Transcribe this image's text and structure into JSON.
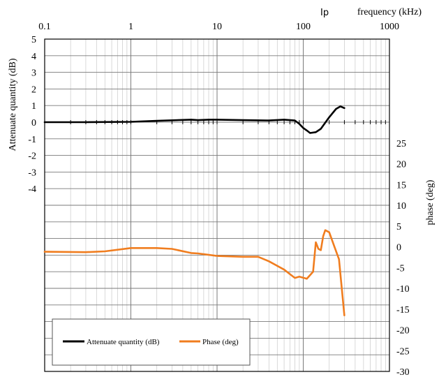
{
  "chart_data": {
    "type": "line",
    "xlabel": "frequency (kHz)",
    "x_scale": "log",
    "xlim": [
      0.1,
      1000
    ],
    "x_ticks": [
      "0.1",
      "1",
      "10",
      "100",
      "1000"
    ],
    "ylabel_left": "Attenuate quantity (dB)",
    "ylim_left": [
      -15,
      5
    ],
    "y_left_ticks": [
      "5",
      "4",
      "3",
      "2",
      "1",
      "0",
      "-1",
      "-2",
      "-3",
      "-4"
    ],
    "ylabel_right": "phase (deg)",
    "ylim_right": [
      -30,
      50
    ],
    "y_right_ticks": [
      "25",
      "20",
      "15",
      "10",
      "5",
      "0",
      "-5",
      "-10",
      "-15",
      "-20",
      "-25",
      "-30"
    ],
    "annotation": "Ip",
    "grid": true,
    "legend_position": "bottom-left",
    "series": [
      {
        "name": "Attenuate quantity (dB)",
        "axis": "left",
        "color": "#000000",
        "x": [
          0.1,
          0.3,
          1,
          2,
          5,
          6,
          8,
          10,
          20,
          40,
          60,
          80,
          90,
          100,
          110,
          120,
          140,
          160,
          200,
          240,
          270,
          300
        ],
        "y": [
          0.0,
          0.0,
          0.02,
          0.08,
          0.15,
          0.12,
          0.15,
          0.15,
          0.12,
          0.1,
          0.15,
          0.1,
          -0.1,
          -0.35,
          -0.5,
          -0.65,
          -0.6,
          -0.4,
          0.3,
          0.8,
          0.95,
          0.85
        ]
      },
      {
        "name": "Phase (deg)",
        "axis": "right",
        "color": "#f07d1f",
        "x": [
          0.1,
          0.3,
          0.5,
          1,
          2,
          3,
          5,
          6,
          10,
          20,
          30,
          40,
          60,
          80,
          90,
          110,
          130,
          140,
          150,
          160,
          170,
          180,
          200,
          230,
          260,
          300
        ],
        "y": [
          -1.2,
          -1.3,
          -1.1,
          -0.3,
          -0.3,
          -0.5,
          -1.5,
          -1.6,
          -2.2,
          -2.4,
          -2.4,
          -3.5,
          -5.5,
          -7.5,
          -7.2,
          -7.7,
          -6,
          1.1,
          -0.5,
          -0.8,
          2.5,
          4,
          3.5,
          0,
          -3,
          -16.5
        ]
      }
    ]
  }
}
